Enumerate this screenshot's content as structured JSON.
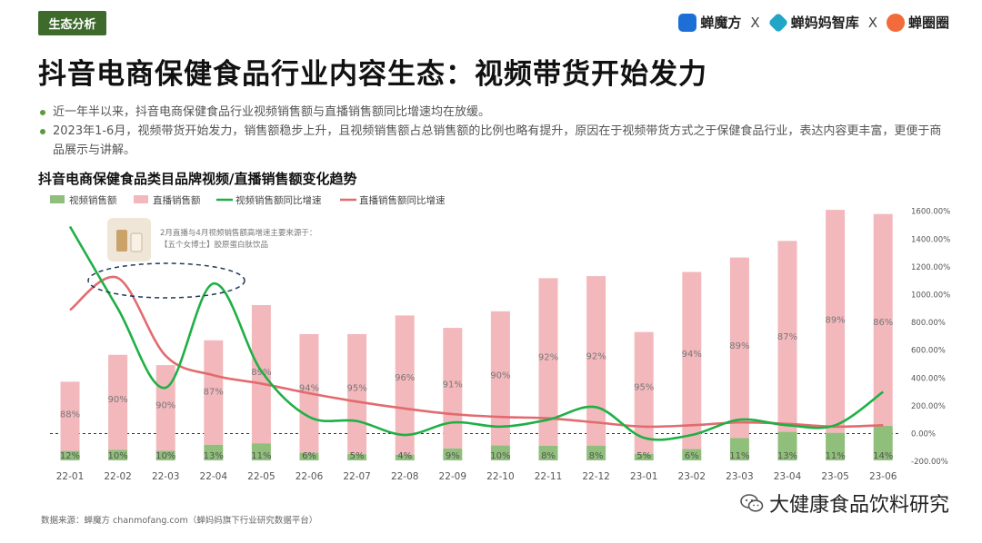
{
  "header": {
    "tag": "生态分析",
    "brands": [
      {
        "name": "蝉魔方",
        "icon": "chanmofang-logo-icon",
        "color": "#1d6fd6"
      },
      {
        "name": "蝉妈妈智库",
        "icon": "chanmama-logo-icon",
        "color": "#21a6c8"
      },
      {
        "name": "蝉圈圈",
        "icon": "chanquanquan-logo-icon",
        "color": "#f26b3a"
      }
    ],
    "separator": "X",
    "title": "抖音电商保健食品行业内容生态：视频带货开始发力"
  },
  "bullets": [
    "近一年半以来，抖音电商保健食品行业视频销售额与直播销售额同比增速均在放缓。",
    "2023年1-6月，视频带货开始发力，销售额稳步上升，且视频销售额占总销售额的比例也略有提升，原因在于视频带货方式之于保健食品行业，表达内容更丰富，更便于商品展示与讲解。"
  ],
  "chart_title": "抖音电商保健食品类目品牌视频/直播销售额变化趋势",
  "annotation": {
    "line1": "2月直播与4月视频销售额高增速主要来源于：",
    "line2": "【五个女博士】胶原蛋白肽饮品"
  },
  "footer": "数据来源：蝉魔方 chanmofang.com（蝉妈妈旗下行业研究数据平台）",
  "watermark": "大健康食品饮料研究",
  "colors": {
    "video": "#8fbf7a",
    "live": "#f2b8bc",
    "video_growth": "#1fb045",
    "live_growth": "#e26b6f",
    "brand_green": "#3e6b2c"
  },
  "chart_data": {
    "type": "bar",
    "categories": [
      "22-01",
      "22-02",
      "22-03",
      "22-04",
      "22-05",
      "22-06",
      "22-07",
      "22-08",
      "22-09",
      "22-10",
      "22-11",
      "22-12",
      "23-01",
      "23-02",
      "23-03",
      "23-04",
      "23-05",
      "23-06"
    ],
    "legend": [
      "视频销售额",
      "直播销售额",
      "视频销售额同比增速",
      "直播销售额同比增速"
    ],
    "series": [
      {
        "name": "视频销售额",
        "kind": "stacked-bar-share",
        "labels": [
          "12%",
          "10%",
          "10%",
          "13%",
          "11%",
          "6%",
          "5%",
          "4%",
          "9%",
          "10%",
          "8%",
          "8%",
          "5%",
          "6%",
          "11%",
          "13%",
          "11%",
          "14%"
        ],
        "values": [
          12,
          10,
          10,
          13,
          11,
          6,
          5,
          4,
          9,
          10,
          8,
          8,
          5,
          6,
          11,
          13,
          11,
          14
        ]
      },
      {
        "name": "直播销售额",
        "kind": "stacked-bar-share",
        "labels": [
          "88%",
          "90%",
          "90%",
          "87%",
          "89%",
          "94%",
          "95%",
          "96%",
          "91%",
          "90%",
          "92%",
          "92%",
          "95%",
          "94%",
          "89%",
          "87%",
          "89%",
          "86%"
        ],
        "values": [
          88,
          90,
          90,
          87,
          89,
          94,
          95,
          96,
          91,
          90,
          92,
          92,
          95,
          94,
          89,
          87,
          89,
          86
        ]
      },
      {
        "name": "视频销售额同比增速",
        "kind": "line",
        "values": [
          1490,
          900,
          330,
          1080,
          450,
          120,
          90,
          -10,
          80,
          50,
          100,
          190,
          -30,
          -10,
          100,
          60,
          60,
          300
        ]
      },
      {
        "name": "直播销售额同比增速",
        "kind": "line",
        "values": [
          890,
          1120,
          560,
          420,
          360,
          290,
          230,
          180,
          140,
          120,
          110,
          80,
          50,
          60,
          80,
          70,
          50,
          60
        ]
      }
    ],
    "bar_total_relative": [
      0.38,
      0.51,
      0.46,
      0.58,
      0.75,
      0.61,
      0.61,
      0.7,
      0.64,
      0.72,
      0.88,
      0.89,
      0.62,
      0.91,
      0.98,
      1.06,
      1.21,
      1.19
    ],
    "y_right": {
      "min": -200,
      "max": 1600,
      "ticks": [
        "-200.00%",
        "0.00%",
        "200.00%",
        "400.00%",
        "600.00%",
        "800.00%",
        "1000.00%",
        "1200.00%",
        "1400.00%",
        "1600.00%"
      ]
    },
    "grid": false,
    "legend_position": "top-left"
  }
}
